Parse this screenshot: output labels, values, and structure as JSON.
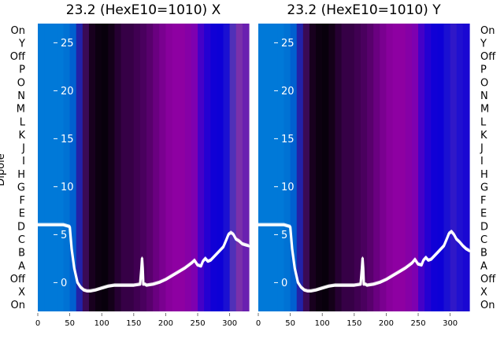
{
  "chart_data": [
    {
      "type": "heatmap",
      "title": "23.2 (HexE10=1010) X",
      "ylabel": "Dipole",
      "xlim": [
        0,
        330
      ],
      "xticks": [
        0,
        50,
        100,
        150,
        200,
        250,
        300
      ],
      "dipole_labels": [
        "On",
        "Y",
        "Off",
        "P",
        "O",
        "N",
        "M",
        "L",
        "K",
        "J",
        "I",
        "H",
        "G",
        "F",
        "E",
        "D",
        "C",
        "B",
        "A",
        "Off",
        "X",
        "On"
      ],
      "overlay": {
        "type": "line",
        "color": "#ffffff",
        "ylim": [
          -3,
          27
        ],
        "yticks": [
          0,
          5,
          10,
          15,
          20,
          25
        ],
        "x": [
          0,
          10,
          20,
          30,
          40,
          50,
          53,
          57,
          62,
          67,
          72,
          77,
          82,
          90,
          100,
          110,
          120,
          130,
          140,
          150,
          160,
          162,
          163,
          164,
          165,
          166,
          168,
          170,
          180,
          190,
          200,
          210,
          220,
          230,
          240,
          245,
          250,
          255,
          258,
          262,
          266,
          270,
          280,
          290,
          295,
          298,
          302,
          306,
          310,
          315,
          320,
          325,
          330
        ],
        "y": [
          6,
          6,
          6,
          6,
          6,
          5.8,
          3.5,
          1.5,
          0,
          -0.5,
          -0.8,
          -0.9,
          -0.9,
          -0.8,
          -0.6,
          -0.4,
          -0.3,
          -0.3,
          -0.3,
          -0.3,
          -0.2,
          1.5,
          2.5,
          1.5,
          -0.2,
          -0.2,
          -0.2,
          -0.3,
          -0.2,
          0,
          0.3,
          0.7,
          1.1,
          1.5,
          2,
          2.3,
          1.8,
          1.7,
          2.2,
          2.5,
          2.2,
          2.3,
          3,
          3.7,
          4.5,
          5,
          5.2,
          5,
          4.5,
          4.3,
          4,
          3.9,
          3.8
        ]
      },
      "heatmap_colors": [
        "#0079d8",
        "#0079d8",
        "#0079d8",
        "#0079d8",
        "#0072d4",
        "#0060d0",
        "#2222a8",
        "#3a0a55",
        "#18001e",
        "#0c0010",
        "#08000c",
        "#140019",
        "#260032",
        "#360046",
        "#360046",
        "#400052",
        "#4a005e",
        "#58006c",
        "#6a0080",
        "#7a0090",
        "#88009c",
        "#8e00a2",
        "#8e00a2",
        "#8600a6",
        "#7e00b0",
        "#4400c8",
        "#2400d2",
        "#1000d6",
        "#0d00d6",
        "#1a10d2",
        "#5030b8",
        "#7a30aa",
        "#6a20b0"
      ]
    },
    {
      "type": "heatmap",
      "title": "23.2 (HexE10=1010) Y",
      "xlim": [
        0,
        330
      ],
      "xticks": [
        0,
        50,
        100,
        150,
        200,
        250,
        300
      ],
      "dipole_labels": [
        "On",
        "Y",
        "Off",
        "P",
        "O",
        "N",
        "M",
        "L",
        "K",
        "J",
        "I",
        "H",
        "G",
        "F",
        "E",
        "D",
        "C",
        "B",
        "A",
        "Off",
        "X",
        "On"
      ],
      "overlay": {
        "type": "line",
        "color": "#ffffff",
        "ylim": [
          -3,
          27
        ],
        "yticks": [
          0,
          5,
          10,
          15,
          20,
          25
        ],
        "x": [
          0,
          10,
          20,
          30,
          40,
          50,
          53,
          57,
          62,
          67,
          72,
          77,
          82,
          90,
          100,
          110,
          120,
          130,
          140,
          150,
          160,
          162,
          163,
          164,
          165,
          166,
          168,
          170,
          180,
          190,
          200,
          210,
          220,
          230,
          240,
          245,
          250,
          255,
          258,
          262,
          266,
          270,
          280,
          290,
          295,
          298,
          302,
          306,
          310,
          315,
          320,
          325,
          330
        ],
        "y": [
          6,
          6,
          6,
          6,
          6,
          5.8,
          3.5,
          1.5,
          0,
          -0.5,
          -0.8,
          -0.9,
          -0.9,
          -0.8,
          -0.6,
          -0.4,
          -0.3,
          -0.3,
          -0.3,
          -0.3,
          -0.2,
          1.5,
          2.5,
          1.5,
          -0.2,
          -0.2,
          -0.2,
          -0.3,
          -0.2,
          0,
          0.3,
          0.7,
          1.1,
          1.5,
          2,
          2.4,
          1.9,
          1.8,
          2.3,
          2.6,
          2.3,
          2.4,
          3.1,
          3.8,
          4.6,
          5.1,
          5.3,
          5,
          4.5,
          4.2,
          3.8,
          3.5,
          3.3
        ]
      },
      "heatmap_colors": [
        "#0079d8",
        "#0079d8",
        "#0079d8",
        "#0079d8",
        "#0072d4",
        "#0060d0",
        "#2222a8",
        "#3a0a55",
        "#18001e",
        "#0c0010",
        "#08000c",
        "#140019",
        "#260032",
        "#360046",
        "#360046",
        "#400052",
        "#4a005e",
        "#58006c",
        "#6a0080",
        "#7a0090",
        "#88009c",
        "#8e00a2",
        "#8e00a2",
        "#8600a6",
        "#7e00b0",
        "#4400c8",
        "#2400d2",
        "#1000d6",
        "#0d00d6",
        "#1a10d2",
        "#3018c8",
        "#2010d0",
        "#1a08d2"
      ]
    }
  ]
}
